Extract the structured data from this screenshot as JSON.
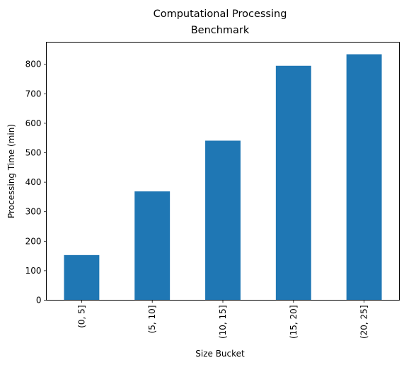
{
  "chart_data": {
    "type": "bar",
    "title_lines": [
      "Computational Processing",
      "Benchmark"
    ],
    "xlabel": "Size Bucket",
    "ylabel": "Processing Time (min)",
    "categories": [
      "(0, 5]",
      "(5, 10]",
      "(10, 15]",
      "(15, 20]",
      "(20, 25]"
    ],
    "values": [
      153,
      369,
      541,
      795,
      834
    ],
    "ylim": [
      0,
      875
    ],
    "yticks": [
      0,
      100,
      200,
      300,
      400,
      500,
      600,
      700,
      800
    ],
    "ytick_labels": [
      "0",
      "100",
      "200",
      "300",
      "400",
      "500",
      "600",
      "700",
      "800"
    ],
    "bar_color": "#1f77b4",
    "grid": false,
    "legend": "none"
  }
}
